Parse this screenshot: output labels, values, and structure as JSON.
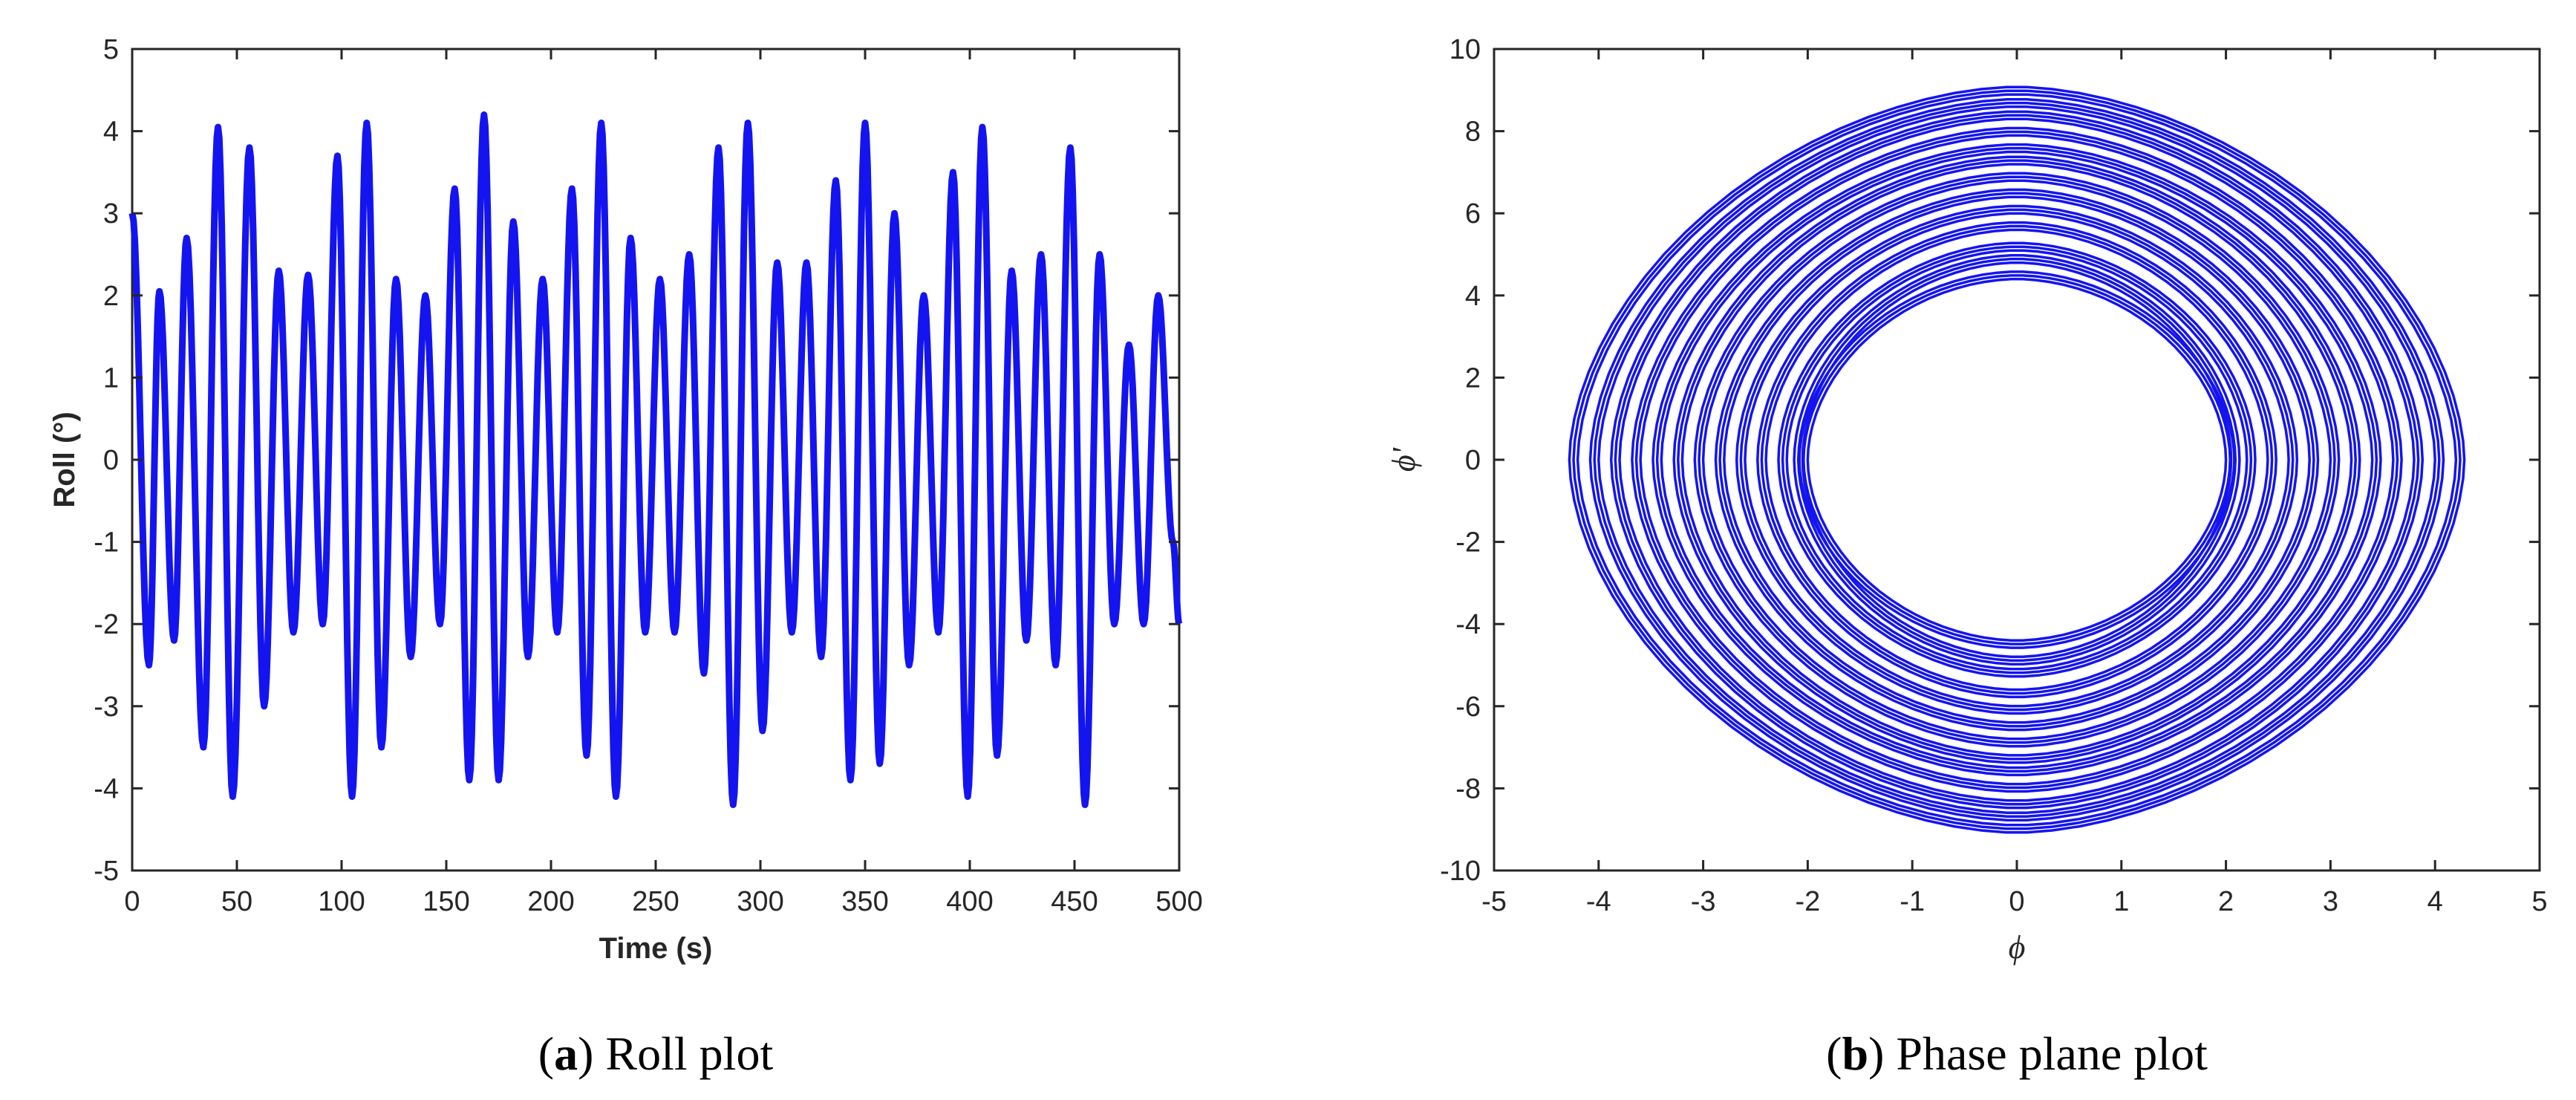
{
  "chart_data": [
    {
      "type": "line",
      "id": "roll",
      "caption_letter": "a",
      "caption_text": " Roll plot",
      "xlabel": "Time (s)",
      "ylabel": "Roll (°)",
      "xlim": [
        0,
        500
      ],
      "ylim": [
        -5,
        5
      ],
      "xticks": [
        0,
        50,
        100,
        150,
        200,
        250,
        300,
        350,
        400,
        450,
        500
      ],
      "yticks": [
        -5,
        -4,
        -3,
        -2,
        -1,
        0,
        1,
        2,
        3,
        4,
        5
      ],
      "grid": false,
      "color": "#1414f0",
      "description": "oscillating roll signal, peaks approx",
      "x": [
        0,
        8,
        13,
        20,
        26,
        34,
        41,
        48,
        56,
        63,
        70,
        77,
        84,
        91,
        98,
        105,
        112,
        119,
        126,
        133,
        140,
        147,
        154,
        161,
        168,
        175,
        182,
        189,
        196,
        203,
        210,
        217,
        224,
        231,
        238,
        245,
        252,
        259,
        266,
        273,
        280,
        287,
        294,
        301,
        308,
        315,
        322,
        329,
        336,
        343,
        350,
        357,
        364,
        371,
        378,
        385,
        392,
        399,
        406,
        413,
        420,
        427,
        434,
        441,
        448,
        455,
        462,
        469,
        476,
        483,
        490,
        497,
        500
      ],
      "y": [
        3.0,
        -2.5,
        2.05,
        -2.2,
        2.7,
        -3.5,
        4.05,
        -4.1,
        3.8,
        -3.0,
        2.3,
        -2.1,
        2.25,
        -2.0,
        3.7,
        -4.1,
        4.1,
        -3.5,
        2.2,
        -2.4,
        2.0,
        -2.0,
        3.3,
        -3.9,
        4.2,
        -3.9,
        2.9,
        -2.4,
        2.2,
        -2.1,
        3.3,
        -3.6,
        4.1,
        -4.1,
        2.7,
        -2.1,
        2.2,
        -2.1,
        2.5,
        -2.6,
        3.8,
        -4.2,
        4.1,
        -3.3,
        2.4,
        -2.1,
        2.4,
        -2.4,
        3.4,
        -3.9,
        4.1,
        -3.7,
        3.0,
        -2.5,
        2.0,
        -2.1,
        3.5,
        -4.1,
        4.05,
        -3.6,
        2.3,
        -2.2,
        2.5,
        -2.5,
        3.8,
        -4.2,
        2.5,
        -2.0,
        1.4,
        -2.0,
        2.0,
        -1.0,
        -2.0
      ],
      "note_omit": true
    },
    {
      "type": "line",
      "id": "phase",
      "caption_letter": "b",
      "caption_text": " Phase plane plot",
      "xlabel": "ϕ",
      "ylabel": "ϕ'",
      "xlim": [
        -5,
        5
      ],
      "ylim": [
        -10,
        10
      ],
      "xticks": [
        -5,
        -4,
        -3,
        -2,
        -1,
        0,
        1,
        2,
        3,
        4,
        5
      ],
      "yticks": [
        -10,
        -8,
        -6,
        -4,
        -2,
        0,
        2,
        4,
        6,
        8,
        10
      ],
      "grid": false,
      "color": "#1414f0",
      "orbits": [
        {
          "amp_x": 2.0,
          "amp_y": 4.4
        },
        {
          "amp_x": 2.05,
          "amp_y": 4.8
        },
        {
          "amp_x": 2.2,
          "amp_y": 5.1
        },
        {
          "amp_x": 2.4,
          "amp_y": 5.6
        },
        {
          "amp_x": 2.6,
          "amp_y": 6.0
        },
        {
          "amp_x": 2.8,
          "amp_y": 6.4
        },
        {
          "amp_x": 3.0,
          "amp_y": 6.8
        },
        {
          "amp_x": 3.2,
          "amp_y": 7.2
        },
        {
          "amp_x": 3.4,
          "amp_y": 7.5
        },
        {
          "amp_x": 3.6,
          "amp_y": 7.9
        },
        {
          "amp_x": 3.8,
          "amp_y": 8.3
        },
        {
          "amp_x": 4.0,
          "amp_y": 8.6
        },
        {
          "amp_x": 4.2,
          "amp_y": 8.9
        }
      ]
    }
  ]
}
